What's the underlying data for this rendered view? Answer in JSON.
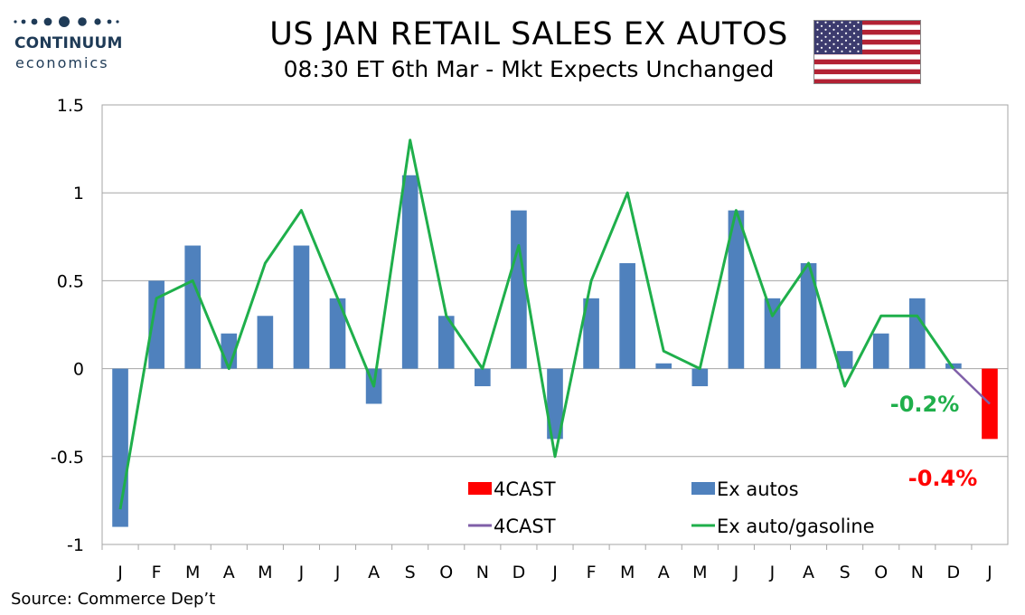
{
  "header": {
    "logo_name": "CONTINUUM",
    "logo_sub": "economics",
    "title": "US JAN RETAIL SALES EX AUTOS",
    "subtitle": "08:30 ET 6th Mar - Mkt Expects Unchanged"
  },
  "source": "Source: Commerce Dep’t",
  "colors": {
    "bars": "#4f81bd",
    "forecast_bar": "#ff0000",
    "line": "#1faf4b",
    "forecast_line": "#7f5fa8",
    "grid": "#a6a6a6"
  },
  "chart_data": {
    "type": "bar",
    "title": "US JAN RETAIL SALES EX AUTOS",
    "categories": [
      "J",
      "F",
      "M",
      "A",
      "M",
      "J",
      "J",
      "A",
      "S",
      "O",
      "N",
      "D",
      "J",
      "F",
      "M",
      "A",
      "M",
      "J",
      "J",
      "A",
      "S",
      "O",
      "N",
      "D",
      "J"
    ],
    "ylim": [
      -1,
      1.5
    ],
    "yticks": [
      -1,
      -0.5,
      0,
      0.5,
      1,
      1.5
    ],
    "ytick_labels": [
      "-1",
      "-0.5",
      "0",
      "0.5",
      "1",
      "1.5"
    ],
    "series": [
      {
        "name": "Ex autos",
        "kind": "bar",
        "values": [
          -0.9,
          0.5,
          0.7,
          0.2,
          0.3,
          0.7,
          0.4,
          -0.2,
          1.1,
          0.3,
          -0.1,
          0.9,
          -0.4,
          0.4,
          0.6,
          0.03,
          -0.1,
          0.9,
          0.4,
          0.6,
          0.1,
          0.2,
          0.4,
          0.03,
          null
        ]
      },
      {
        "name": "4CAST",
        "kind": "bar",
        "values": [
          null,
          null,
          null,
          null,
          null,
          null,
          null,
          null,
          null,
          null,
          null,
          null,
          null,
          null,
          null,
          null,
          null,
          null,
          null,
          null,
          null,
          null,
          null,
          null,
          -0.4
        ]
      },
      {
        "name": "Ex auto/gasoline",
        "kind": "line",
        "values": [
          -0.8,
          0.4,
          0.5,
          0.0,
          0.6,
          0.9,
          0.4,
          -0.1,
          1.3,
          0.3,
          0.0,
          0.7,
          -0.5,
          0.5,
          1.0,
          0.1,
          0.0,
          0.9,
          0.3,
          0.6,
          -0.1,
          0.3,
          0.3,
          0.0,
          null
        ]
      },
      {
        "name": "4CAST",
        "kind": "line",
        "values": [
          null,
          null,
          null,
          null,
          null,
          null,
          null,
          null,
          null,
          null,
          null,
          null,
          null,
          null,
          null,
          null,
          null,
          null,
          null,
          null,
          null,
          null,
          null,
          0.0,
          -0.2
        ]
      }
    ],
    "legend": [
      {
        "label": "4CAST",
        "swatch": "bar",
        "color": "#ff0000"
      },
      {
        "label": "Ex autos",
        "swatch": "bar",
        "color": "#4f81bd"
      },
      {
        "label": "4CAST",
        "swatch": "line",
        "color": "#7f5fa8"
      },
      {
        "label": "Ex auto/gasoline",
        "swatch": "line",
        "color": "#1faf4b"
      }
    ],
    "legend_position": "bottom-center",
    "annotations": [
      {
        "text": "-0.2%",
        "color": "#1faf4b"
      },
      {
        "text": "-0.4%",
        "color": "#ff0000"
      }
    ],
    "grid": true
  }
}
